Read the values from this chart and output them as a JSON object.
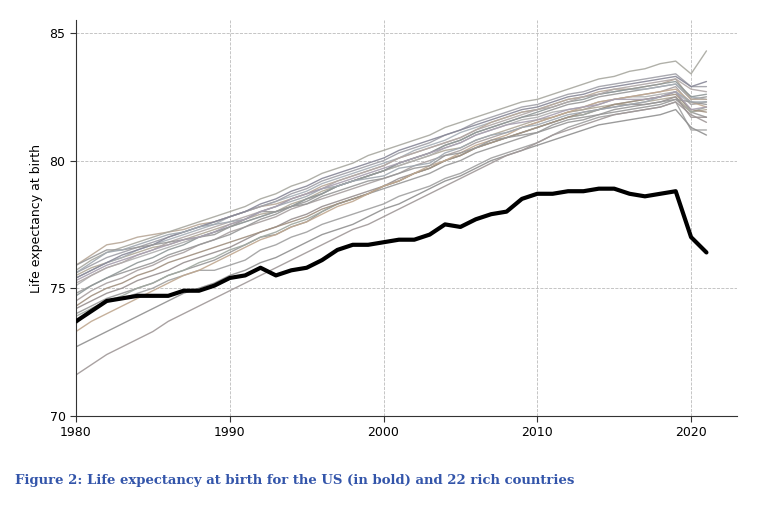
{
  "title": "Figure 2: Life expectancy at birth for the US (in bold) and 22 rich countries",
  "ylabel": "Life expectancy at birth",
  "xlabel": "",
  "xlim": [
    1980,
    2023
  ],
  "ylim": [
    70,
    85.5
  ],
  "yticks": [
    70,
    75,
    80,
    85
  ],
  "xticks": [
    1980,
    1990,
    2000,
    2010,
    2020
  ],
  "background_color": "#ffffff",
  "grid_color": "#bbbbbb",
  "us_color": "#000000",
  "us_linewidth": 3.0,
  "other_linewidth": 1.0,
  "caption_color": "#3355aa",
  "years": [
    1980,
    1981,
    1982,
    1983,
    1984,
    1985,
    1986,
    1987,
    1988,
    1989,
    1990,
    1991,
    1992,
    1993,
    1994,
    1995,
    1996,
    1997,
    1998,
    1999,
    2000,
    2001,
    2002,
    2003,
    2004,
    2005,
    2006,
    2007,
    2008,
    2009,
    2010,
    2011,
    2012,
    2013,
    2014,
    2015,
    2016,
    2017,
    2018,
    2019,
    2020,
    2021
  ],
  "us": [
    73.7,
    74.1,
    74.5,
    74.6,
    74.7,
    74.7,
    74.7,
    74.9,
    74.9,
    75.1,
    75.4,
    75.5,
    75.8,
    75.5,
    75.7,
    75.8,
    76.1,
    76.5,
    76.7,
    76.7,
    76.8,
    76.9,
    76.9,
    77.1,
    77.5,
    77.4,
    77.7,
    77.9,
    78.0,
    78.5,
    78.7,
    78.7,
    78.8,
    78.8,
    78.9,
    78.9,
    78.7,
    78.6,
    78.7,
    78.8,
    77.0,
    76.4
  ],
  "countries": [
    [
      73.6,
      74.2,
      74.5,
      74.6,
      74.8,
      75.0,
      75.3,
      75.5,
      75.7,
      75.7,
      75.9,
      76.1,
      76.5,
      76.7,
      77.0,
      77.2,
      77.5,
      77.7,
      77.9,
      78.1,
      78.3,
      78.6,
      78.8,
      79.0,
      79.3,
      79.5,
      79.8,
      80.1,
      80.3,
      80.5,
      80.7,
      81.0,
      81.3,
      81.5,
      81.7,
      81.8,
      81.9,
      82.0,
      82.1,
      82.3,
      81.2,
      81.2
    ],
    [
      74.0,
      74.3,
      74.6,
      74.8,
      75.0,
      75.2,
      75.5,
      75.7,
      75.9,
      76.1,
      76.4,
      76.7,
      77.0,
      77.1,
      77.4,
      77.6,
      78.0,
      78.3,
      78.5,
      78.7,
      78.9,
      79.1,
      79.3,
      79.5,
      79.8,
      80.0,
      80.3,
      80.5,
      80.7,
      80.9,
      81.1,
      81.3,
      81.5,
      81.6,
      81.8,
      81.9,
      82.0,
      82.1,
      82.2,
      82.4,
      81.9,
      81.7
    ],
    [
      72.7,
      73.0,
      73.3,
      73.6,
      73.9,
      74.2,
      74.5,
      74.8,
      75.0,
      75.2,
      75.5,
      75.7,
      76.0,
      76.2,
      76.5,
      76.8,
      77.1,
      77.3,
      77.5,
      77.8,
      78.1,
      78.3,
      78.6,
      78.9,
      79.2,
      79.4,
      79.7,
      80.0,
      80.2,
      80.4,
      80.6,
      80.8,
      81.0,
      81.2,
      81.4,
      81.5,
      81.6,
      81.7,
      81.8,
      82.0,
      81.3,
      81.0
    ],
    [
      74.5,
      74.9,
      75.2,
      75.4,
      75.7,
      75.9,
      76.2,
      76.4,
      76.7,
      76.9,
      77.2,
      77.4,
      77.6,
      77.8,
      78.1,
      78.3,
      78.5,
      78.7,
      78.9,
      79.1,
      79.3,
      79.5,
      79.8,
      80.0,
      80.2,
      80.4,
      80.7,
      80.9,
      81.1,
      81.3,
      81.5,
      81.7,
      81.9,
      82.0,
      82.2,
      82.4,
      82.5,
      82.6,
      82.7,
      82.9,
      82.2,
      82.3
    ],
    [
      75.5,
      75.8,
      76.0,
      76.2,
      76.4,
      76.6,
      76.7,
      76.9,
      77.1,
      77.3,
      77.5,
      77.7,
      77.9,
      78.0,
      78.3,
      78.5,
      78.8,
      79.0,
      79.2,
      79.4,
      79.6,
      79.8,
      80.0,
      80.2,
      80.4,
      80.5,
      80.8,
      81.0,
      81.2,
      81.4,
      81.6,
      81.7,
      81.9,
      82.0,
      82.1,
      82.2,
      82.2,
      82.3,
      82.4,
      82.5,
      81.9,
      82.0
    ],
    [
      71.6,
      72.0,
      72.4,
      72.7,
      73.0,
      73.3,
      73.7,
      74.0,
      74.3,
      74.6,
      74.9,
      75.2,
      75.5,
      75.8,
      76.1,
      76.4,
      76.7,
      77.0,
      77.3,
      77.5,
      77.8,
      78.1,
      78.4,
      78.7,
      79.0,
      79.3,
      79.6,
      79.9,
      80.2,
      80.4,
      80.7,
      81.0,
      81.2,
      81.4,
      81.6,
      81.8,
      81.9,
      82.0,
      82.1,
      82.3,
      81.8,
      81.5
    ],
    [
      74.2,
      74.5,
      74.8,
      75.0,
      75.3,
      75.5,
      75.7,
      76.0,
      76.2,
      76.4,
      76.6,
      76.9,
      77.2,
      77.4,
      77.7,
      77.9,
      78.2,
      78.4,
      78.6,
      78.8,
      79.0,
      79.3,
      79.5,
      79.7,
      80.0,
      80.2,
      80.5,
      80.7,
      80.9,
      81.1,
      81.3,
      81.5,
      81.7,
      81.8,
      82.0,
      82.1,
      82.2,
      82.2,
      82.3,
      82.5,
      81.7,
      81.7
    ],
    [
      73.9,
      74.2,
      74.5,
      74.7,
      75.0,
      75.2,
      75.5,
      75.7,
      76.0,
      76.2,
      76.5,
      76.7,
      77.0,
      77.2,
      77.5,
      77.7,
      78.0,
      78.3,
      78.5,
      78.7,
      79.0,
      79.2,
      79.5,
      79.7,
      80.0,
      80.2,
      80.5,
      80.7,
      80.9,
      81.1,
      81.3,
      81.5,
      81.7,
      81.8,
      82.0,
      82.2,
      82.3,
      82.4,
      82.5,
      82.7,
      81.9,
      82.1
    ],
    [
      75.1,
      75.5,
      75.8,
      76.0,
      76.2,
      76.4,
      76.6,
      76.8,
      77.0,
      77.2,
      77.4,
      77.6,
      77.8,
      78.0,
      78.2,
      78.5,
      78.7,
      79.0,
      79.2,
      79.4,
      79.6,
      79.8,
      80.0,
      80.2,
      80.5,
      80.7,
      81.0,
      81.2,
      81.4,
      81.6,
      81.7,
      81.9,
      82.0,
      82.1,
      82.3,
      82.4,
      82.5,
      82.5,
      82.6,
      82.7,
      82.2,
      82.3
    ],
    [
      74.8,
      75.1,
      75.4,
      75.6,
      75.8,
      76.0,
      76.3,
      76.5,
      76.7,
      76.9,
      77.1,
      77.4,
      77.7,
      77.9,
      78.2,
      78.4,
      78.7,
      79.0,
      79.2,
      79.4,
      79.6,
      79.9,
      80.1,
      80.3,
      80.6,
      80.8,
      81.1,
      81.3,
      81.5,
      81.7,
      81.8,
      82.0,
      82.2,
      82.3,
      82.5,
      82.6,
      82.7,
      82.8,
      82.9,
      83.0,
      82.4,
      82.5
    ],
    [
      75.4,
      75.7,
      76.0,
      76.2,
      76.5,
      76.7,
      76.9,
      77.1,
      77.3,
      77.5,
      77.8,
      78.0,
      78.2,
      78.4,
      78.6,
      78.8,
      79.1,
      79.3,
      79.5,
      79.7,
      79.9,
      80.1,
      80.4,
      80.6,
      80.8,
      81.1,
      81.3,
      81.5,
      81.7,
      81.9,
      82.0,
      82.2,
      82.4,
      82.5,
      82.6,
      82.7,
      82.8,
      82.8,
      82.9,
      83.0,
      82.5,
      82.4
    ],
    [
      75.9,
      76.3,
      76.7,
      76.8,
      77.0,
      77.1,
      77.2,
      77.3,
      77.5,
      77.6,
      77.8,
      78.0,
      78.2,
      78.3,
      78.5,
      78.7,
      79.0,
      79.2,
      79.4,
      79.6,
      79.8,
      80.1,
      80.3,
      80.5,
      80.7,
      80.9,
      81.2,
      81.5,
      81.7,
      81.9,
      82.0,
      82.2,
      82.4,
      82.5,
      82.7,
      82.8,
      82.8,
      82.9,
      83.0,
      83.2,
      82.4,
      82.4
    ],
    [
      74.3,
      74.7,
      75.0,
      75.2,
      75.5,
      75.7,
      76.0,
      76.2,
      76.4,
      76.6,
      76.8,
      77.0,
      77.2,
      77.4,
      77.6,
      77.8,
      78.1,
      78.3,
      78.5,
      78.7,
      79.0,
      79.2,
      79.5,
      79.7,
      80.0,
      80.2,
      80.5,
      80.7,
      80.9,
      81.1,
      81.3,
      81.5,
      81.7,
      81.9,
      82.0,
      82.2,
      82.3,
      82.4,
      82.5,
      82.6,
      82.0,
      81.9
    ],
    [
      73.3,
      73.7,
      74.0,
      74.3,
      74.6,
      74.9,
      75.2,
      75.5,
      75.7,
      76.0,
      76.3,
      76.6,
      76.9,
      77.1,
      77.4,
      77.6,
      77.9,
      78.2,
      78.4,
      78.7,
      79.0,
      79.2,
      79.5,
      79.8,
      80.0,
      80.3,
      80.6,
      80.8,
      81.0,
      81.3,
      81.5,
      81.7,
      81.9,
      82.1,
      82.3,
      82.4,
      82.5,
      82.6,
      82.7,
      82.8,
      82.3,
      82.1
    ],
    [
      74.7,
      75.1,
      75.4,
      75.7,
      76.0,
      76.2,
      76.5,
      76.7,
      77.0,
      77.2,
      77.4,
      77.6,
      77.8,
      78.0,
      78.2,
      78.5,
      78.7,
      79.0,
      79.2,
      79.4,
      79.6,
      79.9,
      80.1,
      80.3,
      80.6,
      80.8,
      81.1,
      81.3,
      81.5,
      81.7,
      81.9,
      82.1,
      82.3,
      82.4,
      82.6,
      82.7,
      82.8,
      82.9,
      83.0,
      83.1,
      82.5,
      82.6
    ],
    [
      75.6,
      75.9,
      76.2,
      76.4,
      76.6,
      76.8,
      77.0,
      77.2,
      77.4,
      77.6,
      77.8,
      78.0,
      78.2,
      78.4,
      78.7,
      78.9,
      79.2,
      79.4,
      79.6,
      79.8,
      80.0,
      80.3,
      80.5,
      80.7,
      81.0,
      81.2,
      81.5,
      81.7,
      81.9,
      82.1,
      82.2,
      82.4,
      82.6,
      82.7,
      82.9,
      83.0,
      83.1,
      83.2,
      83.3,
      83.4,
      82.9,
      82.9
    ],
    [
      75.4,
      75.7,
      76.0,
      76.3,
      76.5,
      76.7,
      77.0,
      77.2,
      77.4,
      77.6,
      77.8,
      78.0,
      78.3,
      78.5,
      78.8,
      79.0,
      79.3,
      79.5,
      79.7,
      79.9,
      80.1,
      80.4,
      80.6,
      80.8,
      81.0,
      81.2,
      81.4,
      81.6,
      81.8,
      82.0,
      82.1,
      82.3,
      82.5,
      82.6,
      82.8,
      82.9,
      83.0,
      83.1,
      83.2,
      83.3,
      82.9,
      83.1
    ],
    [
      75.7,
      76.1,
      76.4,
      76.6,
      76.8,
      77.0,
      77.2,
      77.4,
      77.6,
      77.8,
      78.0,
      78.2,
      78.5,
      78.7,
      79.0,
      79.2,
      79.5,
      79.7,
      79.9,
      80.2,
      80.4,
      80.6,
      80.8,
      81.0,
      81.3,
      81.5,
      81.7,
      81.9,
      82.1,
      82.3,
      82.4,
      82.6,
      82.8,
      83.0,
      83.2,
      83.3,
      83.5,
      83.6,
      83.8,
      83.9,
      83.4,
      84.3
    ],
    [
      75.2,
      75.5,
      75.8,
      76.0,
      76.3,
      76.5,
      76.8,
      77.0,
      77.2,
      77.4,
      77.6,
      77.8,
      78.0,
      78.2,
      78.5,
      78.7,
      78.9,
      79.2,
      79.4,
      79.6,
      79.8,
      80.1,
      80.3,
      80.5,
      80.7,
      80.9,
      81.2,
      81.4,
      81.6,
      81.8,
      82.0,
      82.1,
      82.3,
      82.5,
      82.6,
      82.8,
      82.9,
      83.0,
      83.1,
      83.2,
      82.8,
      82.7
    ],
    [
      75.9,
      76.2,
      76.5,
      76.5,
      76.6,
      76.7,
      76.8,
      76.9,
      77.0,
      77.1,
      77.4,
      77.7,
      78.0,
      78.0,
      78.2,
      78.3,
      78.6,
      78.8,
      79.0,
      79.2,
      79.3,
      79.5,
      79.7,
      79.8,
      80.2,
      80.3,
      80.5,
      80.8,
      80.9,
      81.0,
      81.1,
      81.4,
      81.6,
      81.7,
      81.8,
      82.0,
      82.1,
      82.2,
      82.3,
      82.4,
      82.3,
      82.2
    ],
    [
      75.6,
      76.0,
      76.4,
      76.5,
      76.7,
      76.9,
      77.1,
      77.2,
      77.4,
      77.5,
      77.6,
      77.7,
      78.0,
      78.2,
      78.4,
      78.6,
      78.9,
      79.0,
      79.2,
      79.3,
      79.4,
      79.7,
      79.8,
      79.9,
      80.3,
      80.5,
      80.8,
      81.0,
      81.1,
      81.3,
      81.4,
      81.6,
      81.8,
      81.9,
      82.0,
      82.1,
      82.2,
      82.3,
      82.5,
      82.7,
      82.3,
      82.3
    ],
    [
      75.3,
      75.6,
      75.9,
      76.1,
      76.3,
      76.5,
      76.7,
      76.9,
      77.0,
      77.2,
      77.5,
      77.7,
      78.0,
      78.2,
      78.5,
      78.7,
      78.9,
      79.1,
      79.3,
      79.5,
      79.7,
      79.9,
      80.1,
      80.3,
      80.5,
      80.7,
      81.0,
      81.2,
      81.4,
      81.5,
      81.6,
      81.8,
      82.0,
      82.1,
      82.2,
      82.4,
      82.4,
      82.4,
      82.5,
      82.7,
      82.0,
      82.1
    ]
  ],
  "country_colors": [
    "#9b9b9b",
    "#9b9b9b",
    "#9b9b9b",
    "#9b9b9b",
    "#9b9b9b",
    "#9b9b9b",
    "#9b9b9b",
    "#9b9b9b",
    "#9b9b9b",
    "#9b9b9b",
    "#9b9b9b",
    "#9b9b9b",
    "#b09080",
    "#b09080",
    "#9b9b9b",
    "#9b9b9b",
    "#9b9b9b",
    "#9b9b9b",
    "#9b9b9b",
    "#9b9b9b",
    "#9b9b9b",
    "#9b9b9b"
  ]
}
